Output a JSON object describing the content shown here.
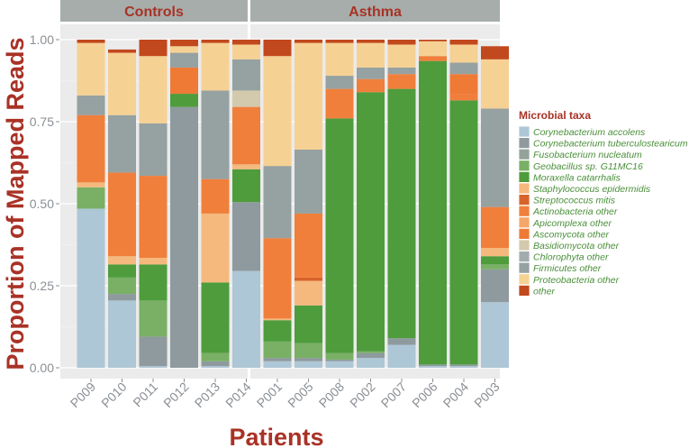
{
  "chart_data": {
    "type": "bar",
    "stacked": true,
    "xlabel": "Patients",
    "ylabel": "Proportion of Mapped Reads",
    "ylim": [
      0,
      1
    ],
    "yticks": [
      "0.00",
      "0.25",
      "0.50",
      "0.75",
      "1.00"
    ],
    "grid": true,
    "legend_position": "right",
    "legend_title": "Microbial taxa",
    "facets": [
      {
        "label": "Controls",
        "categories": [
          "P009",
          "P010",
          "P011",
          "P012",
          "P013",
          "P014"
        ]
      },
      {
        "label": "Asthma",
        "categories": [
          "P001",
          "P005",
          "P008",
          "P002",
          "P007",
          "P006",
          "P004",
          "P003"
        ]
      }
    ],
    "categories": [
      "P009",
      "P010",
      "P011",
      "P012",
      "P013",
      "P014",
      "P001",
      "P005",
      "P008",
      "P002",
      "P007",
      "P006",
      "P004",
      "P003"
    ],
    "series": [
      {
        "name": "Corynebacterium accolens",
        "color": "#aec7d6",
        "values": [
          0.485,
          0.205,
          0.005,
          0.0,
          0.005,
          0.295,
          0.02,
          0.02,
          0.02,
          0.03,
          0.07,
          0.005,
          0.005,
          0.2
        ]
      },
      {
        "name": "Corynebacterium tuberculostearicum",
        "color": "#8e9a9e",
        "values": [
          0.0,
          0.02,
          0.09,
          0.795,
          0.015,
          0.21,
          0.01,
          0.01,
          0.005,
          0.015,
          0.02,
          0.005,
          0.005,
          0.1
        ]
      },
      {
        "name": "Fusobacterium nucleatum",
        "color": "#94a39a",
        "values": [
          0.0,
          0.0,
          0.0,
          0.0,
          0.0,
          0.0,
          0.0,
          0.0,
          0.0,
          0.0,
          0.0,
          0.0,
          0.0,
          0.0
        ]
      },
      {
        "name": "Geobacillus sp. G11MC16",
        "color": "#79b065",
        "values": [
          0.065,
          0.05,
          0.11,
          0.0,
          0.025,
          0.0,
          0.05,
          0.045,
          0.02,
          0.005,
          0.0,
          0.0,
          0.0,
          0.015
        ]
      },
      {
        "name": "Moraxella catarrhalis",
        "color": "#4e9c3c",
        "values": [
          0.0,
          0.04,
          0.11,
          0.04,
          0.215,
          0.1,
          0.065,
          0.115,
          0.715,
          0.79,
          0.76,
          0.925,
          0.805,
          0.025
        ]
      },
      {
        "name": "Staphylococcus epidermidis",
        "color": "#f5b97e",
        "values": [
          0.015,
          0.025,
          0.02,
          0.0,
          0.21,
          0.015,
          0.005,
          0.075,
          0.0,
          0.0,
          0.0,
          0.0,
          0.0,
          0.025
        ]
      },
      {
        "name": "Streptococcus mitis",
        "color": "#d8632b",
        "values": [
          0.0,
          0.0,
          0.0,
          0.0,
          0.0,
          0.0,
          0.0,
          0.01,
          0.0,
          0.0,
          0.0,
          0.0,
          0.0,
          0.0
        ]
      },
      {
        "name": "Actinobacteria other",
        "color": "#f07f3b",
        "values": [
          0.205,
          0.255,
          0.25,
          0.0,
          0.105,
          0.175,
          0.245,
          0.195,
          0.09,
          0.04,
          0.045,
          0.015,
          0.02,
          0.125
        ]
      },
      {
        "name": "Apicomplexa other",
        "color": "#f5a66a",
        "values": [
          0.0,
          0.0,
          0.0,
          0.0,
          0.0,
          0.0,
          0.0,
          0.0,
          0.0,
          0.0,
          0.0,
          0.0,
          0.0,
          0.0
        ]
      },
      {
        "name": "Ascomycota other",
        "color": "#ee7a35",
        "values": [
          0.0,
          0.0,
          0.0,
          0.08,
          0.0,
          0.0,
          0.0,
          0.0,
          0.0,
          0.0,
          0.0,
          0.0,
          0.06,
          0.0
        ]
      },
      {
        "name": "Basidiomycota other",
        "color": "#d3c9ad",
        "values": [
          0.0,
          0.0,
          0.0,
          0.0,
          0.0,
          0.05,
          0.0,
          0.0,
          0.0,
          0.0,
          0.0,
          0.0,
          0.0,
          0.0
        ]
      },
      {
        "name": "Chlorophyta other",
        "color": "#a2acae",
        "values": [
          0.0,
          0.0,
          0.0,
          0.0,
          0.0,
          0.0,
          0.0,
          0.0,
          0.0,
          0.0,
          0.0,
          0.0,
          0.0,
          0.0
        ]
      },
      {
        "name": "Firmicutes other",
        "color": "#96a1a1",
        "values": [
          0.06,
          0.175,
          0.16,
          0.045,
          0.27,
          0.095,
          0.22,
          0.195,
          0.04,
          0.035,
          0.02,
          0.0,
          0.035,
          0.3
        ]
      },
      {
        "name": "Proteobacteria other",
        "color": "#f6d194",
        "values": [
          0.16,
          0.19,
          0.205,
          0.02,
          0.145,
          0.045,
          0.335,
          0.325,
          0.1,
          0.075,
          0.07,
          0.045,
          0.055,
          0.15
        ]
      },
      {
        "name": "other",
        "color": "#c2491d",
        "values": [
          0.01,
          0.01,
          0.05,
          0.02,
          0.01,
          0.015,
          0.05,
          0.01,
          0.01,
          0.01,
          0.015,
          0.005,
          0.015,
          0.04
        ]
      }
    ]
  }
}
